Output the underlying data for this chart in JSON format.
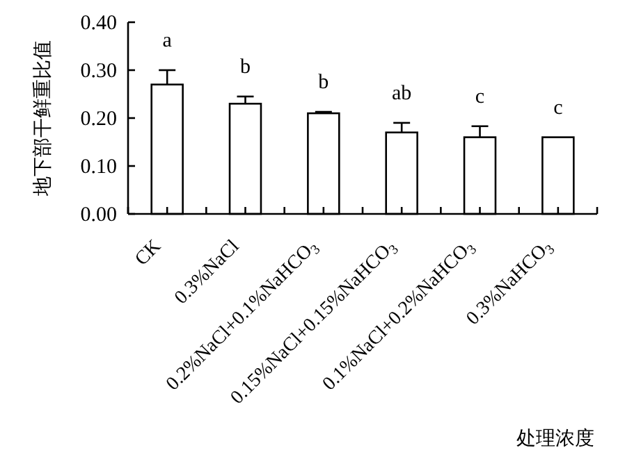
{
  "chart_data": {
    "type": "bar",
    "ylabel": "地下部干鲜重比值",
    "xlabel": "处理浓度",
    "categories": [
      "CK",
      "0.3%NaCl",
      "0.2%NaCl+0.1%NaHCO$_{3}$",
      "0.15%NaCl+0.15%NaHCO$_{3}$",
      "0.1%NaCl+0.2%NaHCO$_{3}$",
      "0.3%NaHCO$_{3}$"
    ],
    "values": [
      0.27,
      0.23,
      0.21,
      0.17,
      0.16,
      0.16
    ],
    "errors": [
      0.03,
      0.015,
      0.003,
      0.02,
      0.023,
      null
    ],
    "color": "#ffffff",
    "ylim": [
      0,
      0.4
    ],
    "yticks": [
      {
        "value": 0,
        "label": "0.00"
      },
      {
        "value": 0.1,
        "label": "0.10"
      },
      {
        "value": 0.2,
        "label": "0.20"
      },
      {
        "value": 0.3,
        "label": "0.30"
      },
      {
        "value": 0.4,
        "label": "0.40"
      }
    ],
    "annotations": [
      "a",
      "b",
      "b",
      "ab",
      "c",
      "c"
    ]
  }
}
